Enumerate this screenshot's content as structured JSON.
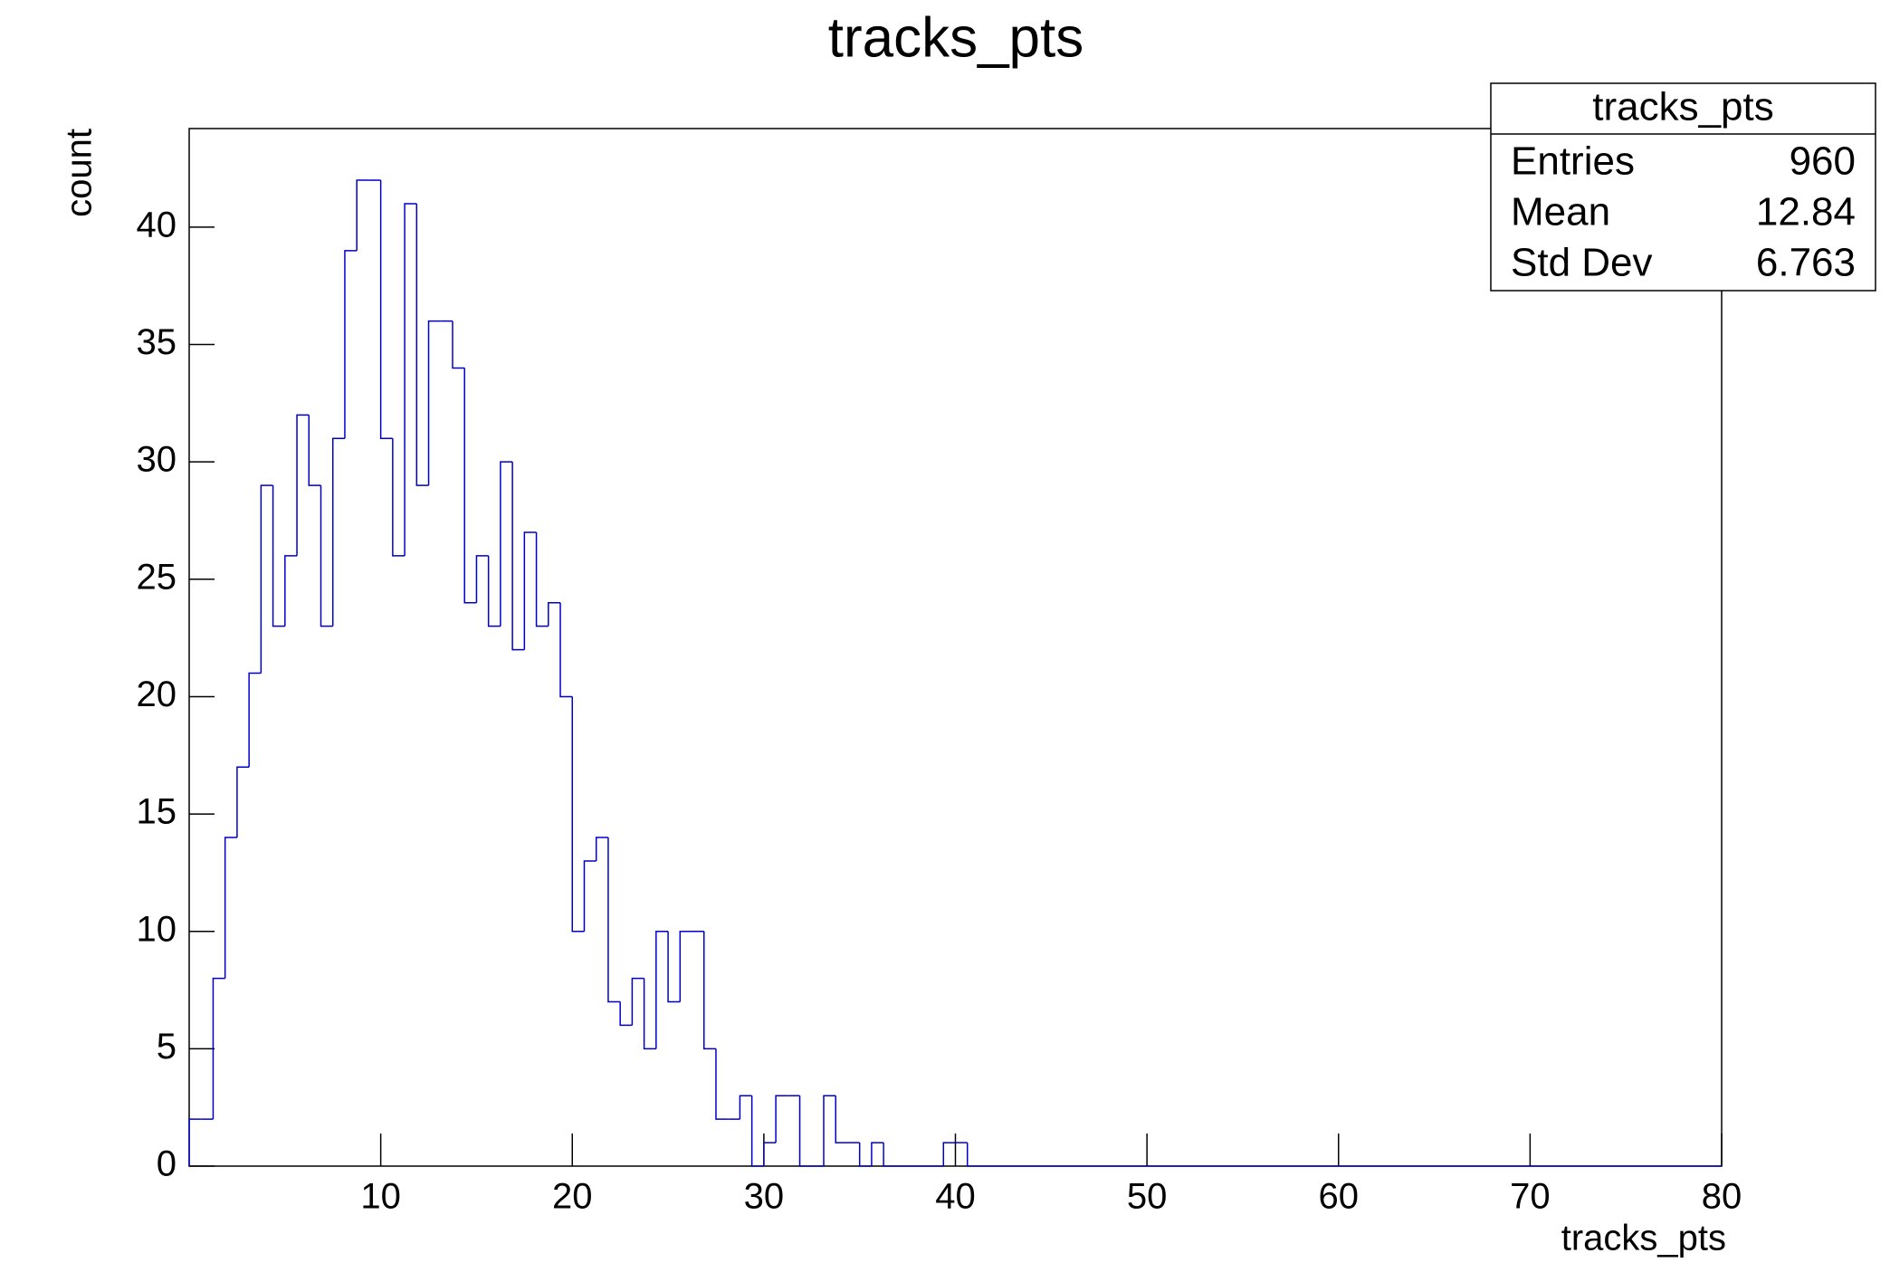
{
  "chart_data": {
    "type": "histogram",
    "title": "tracks_pts",
    "x_label": "tracks_pts",
    "y_label": "count",
    "color": "#0000cc",
    "bins": [
      0,
      0.625,
      1.25,
      1.875,
      2.5,
      3.125,
      3.75,
      4.375,
      5,
      5.625,
      6.25,
      6.875,
      7.5,
      8.125,
      8.75,
      9.375,
      10,
      10.625,
      11.25,
      11.875,
      12.5,
      13.125,
      13.75,
      14.375,
      15,
      15.625,
      16.25,
      16.875,
      17.5,
      18.125,
      18.75,
      19.375,
      20,
      20.625,
      21.25,
      21.875,
      22.5,
      23.125,
      23.75,
      24.375,
      25,
      25.625,
      26.25,
      26.875,
      27.5,
      28.125,
      28.75,
      29.375,
      30,
      30.625,
      31.25,
      31.875,
      32.5,
      33.125,
      33.75,
      34.375,
      35,
      35.625,
      36.25,
      36.875,
      37.5,
      38.125,
      38.75,
      39.375,
      40,
      40.625,
      41.25,
      41.875,
      42.5,
      43.125,
      43.75,
      44.375,
      45,
      45.625,
      46.25,
      46.875,
      47.5,
      48.125,
      48.75,
      49.375,
      50,
      50.625,
      51.25,
      51.875,
      52.5,
      53.125,
      53.75,
      54.375,
      55,
      55.625,
      56.25,
      56.875,
      57.5,
      58.125,
      58.75,
      59.375,
      60,
      60.625,
      61.25,
      61.875,
      62.5,
      63.125,
      63.75,
      64.375,
      65,
      65.625,
      66.25,
      66.875,
      67.5,
      68.125,
      68.75,
      69.375,
      70,
      70.625,
      71.25,
      71.875,
      72.5,
      73.125,
      73.75,
      74.375,
      75,
      75.625,
      76.25,
      76.875,
      77.5,
      78.125,
      78.75,
      79.375,
      80
    ],
    "values": [
      2,
      2,
      8,
      14,
      17,
      21,
      29,
      23,
      26,
      32,
      29,
      23,
      31,
      39,
      42,
      42,
      31,
      26,
      41,
      29,
      36,
      36,
      34,
      24,
      26,
      23,
      30,
      22,
      27,
      23,
      24,
      20,
      10,
      13,
      14,
      7,
      6,
      8,
      5,
      10,
      7,
      10,
      10,
      5,
      2,
      2,
      3,
      0,
      1,
      3,
      3,
      0,
      0,
      3,
      1,
      1,
      0,
      1,
      0,
      0,
      0,
      0,
      0,
      1,
      1,
      0,
      0,
      0,
      0,
      0,
      0,
      0,
      0,
      0,
      0,
      0,
      0,
      0,
      0,
      0,
      0,
      0,
      0,
      0,
      0,
      0,
      0,
      0,
      0,
      0,
      0,
      0,
      0,
      0,
      0,
      0,
      0,
      0,
      0,
      0,
      0,
      0,
      0,
      0,
      0,
      0,
      0,
      0,
      0,
      0,
      0,
      0,
      0,
      0,
      0,
      0,
      0,
      0,
      0,
      0,
      0,
      0,
      0,
      0,
      0,
      0,
      0,
      0
    ],
    "xlim": [
      0,
      80
    ],
    "xticks": [
      10,
      20,
      30,
      40,
      50,
      60,
      70,
      80
    ],
    "ylim": [
      0,
      44.2
    ],
    "yticks": [
      0,
      5,
      10,
      15,
      20,
      25,
      30,
      35,
      40
    ],
    "stats": {
      "title": "tracks_pts",
      "rows": [
        [
          "Entries",
          960
        ],
        [
          "Mean",
          12.84
        ],
        [
          "Std Dev",
          6.763
        ]
      ]
    }
  }
}
